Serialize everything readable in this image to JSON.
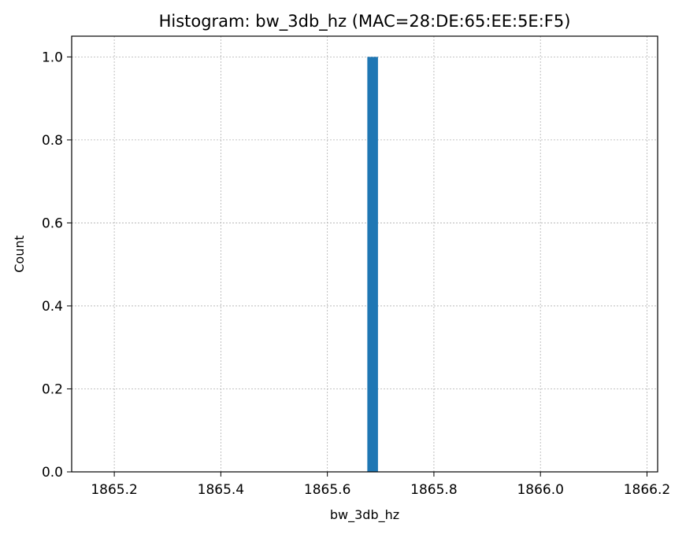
{
  "chart_data": {
    "type": "bar",
    "title": "Histogram: bw_3db_hz (MAC=28:DE:65:EE:5E:F5)",
    "xlabel": "bw_3db_hz",
    "ylabel": "Count",
    "xlim": [
      1865.12,
      1866.22
    ],
    "ylim": [
      0,
      1.05
    ],
    "xticks": [
      "1865.2",
      "1865.4",
      "1865.6",
      "1865.8",
      "1866.0",
      "1866.2"
    ],
    "yticks": [
      "0.0",
      "0.2",
      "0.4",
      "0.6",
      "0.8",
      "1.0"
    ],
    "grid": true,
    "bars": [
      {
        "x_start": 1865.675,
        "x_end": 1865.695,
        "value": 1
      }
    ],
    "bar_color": "#1f77b4"
  }
}
